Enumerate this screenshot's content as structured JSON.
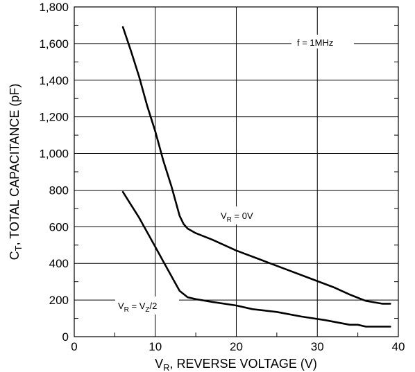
{
  "chart_data": {
    "type": "line",
    "xlabel": {
      "main": "V",
      "sub": "R",
      "rest": ", REVERSE VOLTAGE (V)"
    },
    "ylabel": {
      "main": "C",
      "sub": "T",
      "rest": ", TOTAL CAPACITANCE (pF)"
    },
    "xlim": [
      0,
      40
    ],
    "ylim": [
      0,
      1800
    ],
    "xticks": [
      0,
      10,
      20,
      30,
      40
    ],
    "xtick_labels": [
      "0",
      "10",
      "20",
      "30",
      "40"
    ],
    "yticks": [
      0,
      200,
      400,
      600,
      800,
      1000,
      1200,
      1400,
      1600,
      1800
    ],
    "ytick_labels": [
      "0",
      "200",
      "400",
      "600",
      "800",
      "1,000",
      "1,200",
      "1,400",
      "1,600",
      "1,800"
    ],
    "grid": true,
    "annotations": {
      "freq": "f = 1MHz",
      "s1": {
        "main": "V",
        "sub": "R",
        "rest": " = 0V"
      },
      "s2": {
        "a": "V",
        "a_sub": "R",
        "mid": " = V",
        "b_sub": "Z",
        "rest": "/2"
      }
    },
    "series": [
      {
        "x": [
          6,
          7,
          8,
          9,
          10,
          11,
          12,
          13,
          13.5,
          14,
          15,
          17,
          20,
          23,
          26,
          29,
          32,
          34,
          36,
          38,
          39
        ],
        "y": [
          1690,
          1560,
          1420,
          1260,
          1120,
          960,
          820,
          660,
          615,
          590,
          565,
          530,
          470,
          420,
          370,
          320,
          270,
          230,
          195,
          180,
          180
        ]
      },
      {
        "x": [
          6,
          7,
          8,
          9,
          10,
          11,
          12,
          13,
          14,
          15,
          17,
          20,
          22,
          25,
          28,
          31,
          34,
          35,
          36,
          37,
          38,
          39
        ],
        "y": [
          790,
          720,
          650,
          570,
          490,
          410,
          330,
          250,
          215,
          205,
          190,
          170,
          150,
          135,
          110,
          90,
          65,
          65,
          55,
          55,
          55,
          55
        ]
      }
    ]
  }
}
